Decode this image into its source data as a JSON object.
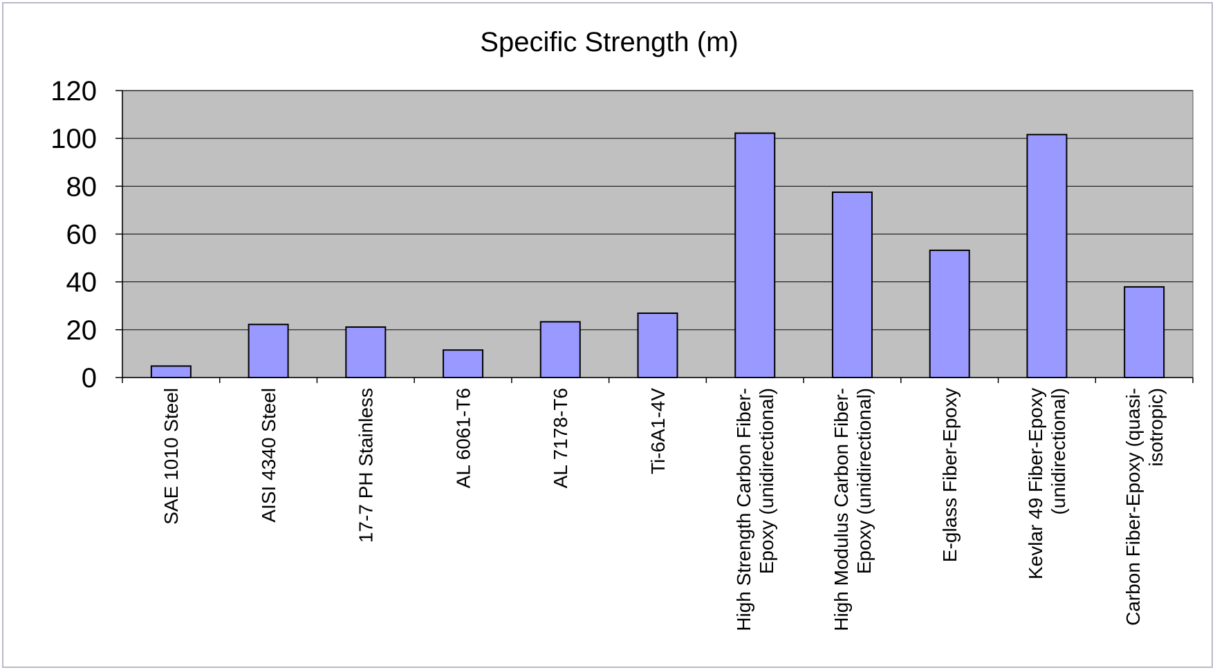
{
  "chart_data": {
    "type": "bar",
    "title": "Specific Strength (m)",
    "xlabel": "",
    "ylabel": "",
    "ylim": [
      0,
      120
    ],
    "yticks": [
      0,
      20,
      40,
      60,
      80,
      100,
      120
    ],
    "grid": true,
    "legend": "none",
    "categories": [
      "SAE 1010 Steel",
      "AISI 4340 Steel",
      "17-7 PH Stainless",
      "AL 6061-T6",
      "AL 7178-T6",
      "Ti-6A1-4V",
      "High Strength Carbon Fiber-Epoxy (unidirectional)",
      "High Modulus Carbon Fiber-Epoxy (unidirectional)",
      "E-glass Fiber-Epoxy",
      "Kevlar 49 Fiber-Epoxy (unidirectional)",
      "Carbon Fiber-Epoxy (quasi-isotropic)"
    ],
    "category_label_lines": [
      [
        "SAE 1010 Steel"
      ],
      [
        "AISI 4340 Steel"
      ],
      [
        "17-7 PH Stainless"
      ],
      [
        "AL 6061-T6"
      ],
      [
        "AL 7178-T6"
      ],
      [
        "Ti-6A1-4V"
      ],
      [
        "High Strength Carbon Fiber-",
        "Epoxy (unidirectional)"
      ],
      [
        "High Modulus Carbon Fiber-",
        "Epoxy (unidirectional)"
      ],
      [
        "E-glass Fiber-Epoxy"
      ],
      [
        "Kevlar 49 Fiber-Epoxy",
        "(unidirectional)"
      ],
      [
        "Carbon Fiber-Epoxy (quasi-",
        "isotropic)"
      ]
    ],
    "values": [
      4.8,
      22.2,
      21.1,
      11.5,
      23.3,
      26.9,
      102.2,
      77.5,
      53.2,
      101.6,
      37.9
    ],
    "colors": {
      "bar_fill": "#9999ff",
      "bar_stroke": "#000000",
      "plot_background": "#c0c0c0",
      "gridline": "#000000",
      "page_background": "#ffffff"
    }
  }
}
